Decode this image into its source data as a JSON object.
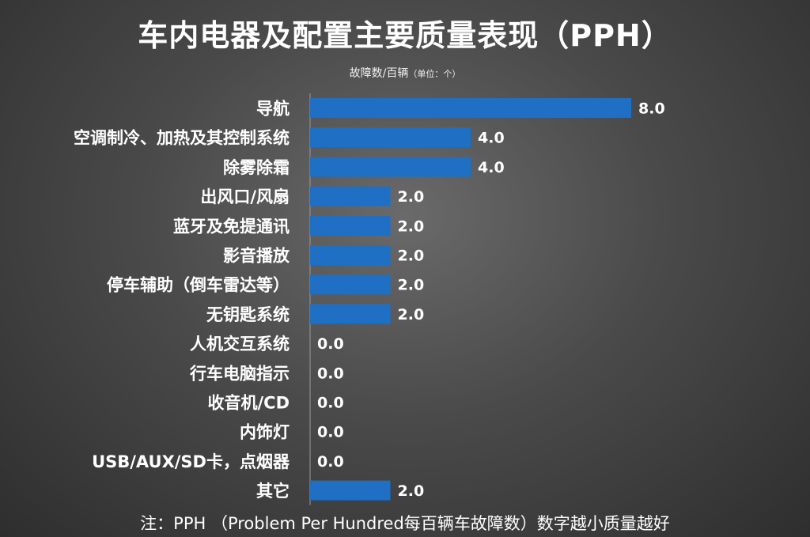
{
  "chart_data": {
    "type": "bar",
    "orientation": "horizontal",
    "title": "车内电器及配置主要质量表现（PPH）",
    "subtitle": "故障数/百辆",
    "unit": "（单位：个）",
    "categories": [
      "导航",
      "空调制冷、加热及其控制系统",
      "除雾除霜",
      "出风口/风扇",
      "蓝牙及免提通讯",
      "影音播放",
      "停车辅助（倒车雷达等）",
      "无钥匙系统",
      "人机交互系统",
      "行车电脑指示",
      "收音机/CD",
      "内饰灯",
      "USB/AUX/SD卡，点烟器",
      "其它"
    ],
    "values": [
      8.0,
      4.0,
      4.0,
      2.0,
      2.0,
      2.0,
      2.0,
      2.0,
      0.0,
      0.0,
      0.0,
      0.0,
      0.0,
      2.0
    ],
    "value_labels": [
      "8.0",
      "4.0",
      "4.0",
      "2.0",
      "2.0",
      "2.0",
      "2.0",
      "2.0",
      "0.0",
      "0.0",
      "0.0",
      "0.0",
      "0.0",
      "2.0"
    ],
    "xlim": [
      0,
      8.0
    ],
    "grid": false,
    "bar_color": "#1f6fc4"
  },
  "footnote": "注：PPH （Problem Per Hundred每百辆车故障数）数字越小质量越好"
}
